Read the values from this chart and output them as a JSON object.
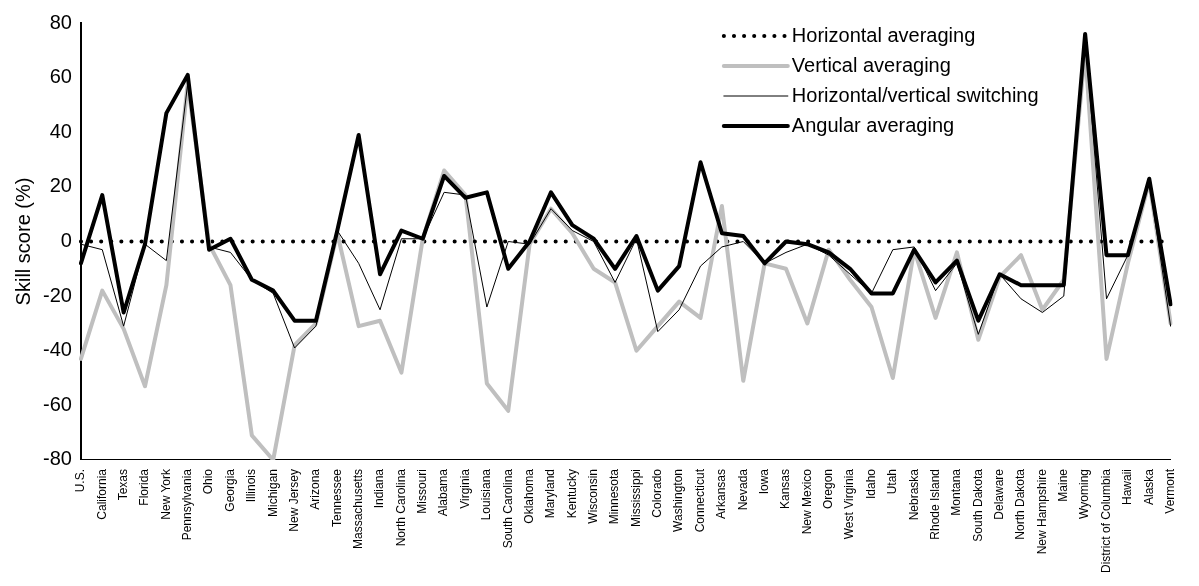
{
  "chart_data": {
    "type": "line",
    "ylabel": "Skill score (%)",
    "categories": [
      "U.S.",
      "California",
      "Texas",
      "Florida",
      "New York",
      "Pennsylvania",
      "Ohio",
      "Georgia",
      "Illinois",
      "Michigan",
      "New Jersey",
      "Arizona",
      "Tennessee",
      "Massachusetts",
      "Indiana",
      "North Carolina",
      "Missouri",
      "Alabama",
      "Virginia",
      "Louisiana",
      "South Carolina",
      "Oklahoma",
      "Maryland",
      "Kentucky",
      "Wisconsin",
      "Minnesota",
      "Mississippi",
      "Colorado",
      "Washington",
      "Connecticut",
      "Arkansas",
      "Nevada",
      "Iowa",
      "Kansas",
      "New Mexico",
      "Oregon",
      "West Virginia",
      "Idaho",
      "Utah",
      "Nebraska",
      "Rhode Island",
      "Montana",
      "South Dakota",
      "Delaware",
      "North Dakota",
      "New Hampshire",
      "Maine",
      "Wyoming",
      "District of Columbia",
      "Hawaii",
      "Alaska",
      "Vermont"
    ],
    "series": [
      {
        "name": "Horizontal averaging",
        "color": "#000000",
        "line_style": "dotted",
        "values": [
          0,
          0,
          0,
          0,
          0,
          0,
          0,
          0,
          0,
          0,
          0,
          0,
          0,
          0,
          0,
          0,
          0,
          0,
          0,
          0,
          0,
          0,
          0,
          0,
          0,
          0,
          0,
          0,
          0,
          0,
          0,
          0,
          0,
          0,
          0,
          0,
          0,
          0,
          0,
          0,
          0,
          0,
          0,
          0,
          0,
          0,
          0,
          0,
          0,
          0,
          0,
          0
        ]
      },
      {
        "name": "Vertical averaging",
        "color": "#bfbfbf",
        "line_style": "solid",
        "values": [
          -43,
          -18,
          -32,
          -53,
          -16,
          58,
          -1,
          -16,
          -71,
          -80,
          -38,
          -30,
          3,
          -31,
          -29,
          -48,
          1,
          26,
          17,
          -52,
          -62,
          -1,
          12,
          3,
          -10,
          -15,
          -40,
          -31,
          -22,
          -28,
          13,
          -51,
          -8,
          -10,
          -30,
          -3,
          -14,
          -24,
          -50,
          -3,
          -28,
          -4,
          -36,
          -13,
          -5,
          -25,
          -14,
          70,
          -43,
          -8,
          22,
          -30
        ]
      },
      {
        "name": "Horizontal/vertical switching",
        "color": "#000000",
        "line_style": "solid",
        "values": [
          -1,
          -3,
          -31,
          -1,
          -7,
          58,
          -2,
          -4,
          -14,
          -19,
          -39,
          -31,
          4,
          -8,
          -25,
          1,
          1,
          18,
          17,
          -24,
          0,
          -1,
          12,
          4,
          0,
          -15,
          1,
          -33,
          -25,
          -9,
          -2,
          0,
          -8,
          -4,
          -1,
          -5,
          -12,
          -19,
          -3,
          -2,
          -18,
          -8,
          -34,
          -12,
          -21,
          -26,
          -20,
          75,
          -21,
          -5,
          22,
          -31
        ]
      },
      {
        "name": "Angular averaging",
        "color": "#000000",
        "line_style": "solid",
        "values": [
          -8,
          17,
          -26,
          -1,
          47,
          61,
          -3,
          1,
          -14,
          -18,
          -29,
          -29,
          4,
          39,
          -12,
          4,
          1,
          24,
          16,
          18,
          -10,
          0,
          18,
          6,
          1,
          -10,
          2,
          -18,
          -9,
          29,
          3,
          2,
          -8,
          0,
          -1,
          -4,
          -10,
          -19,
          -19,
          -3,
          -15,
          -7,
          -29,
          -12,
          -16,
          -16,
          -16,
          76,
          -5,
          -5,
          23,
          -23
        ]
      }
    ],
    "ylim": [
      -80,
      80
    ],
    "yticks": [
      -80,
      -60,
      -40,
      -20,
      0,
      20,
      40,
      60,
      80
    ],
    "grid": false,
    "legend": "top right",
    "marker": "none"
  }
}
